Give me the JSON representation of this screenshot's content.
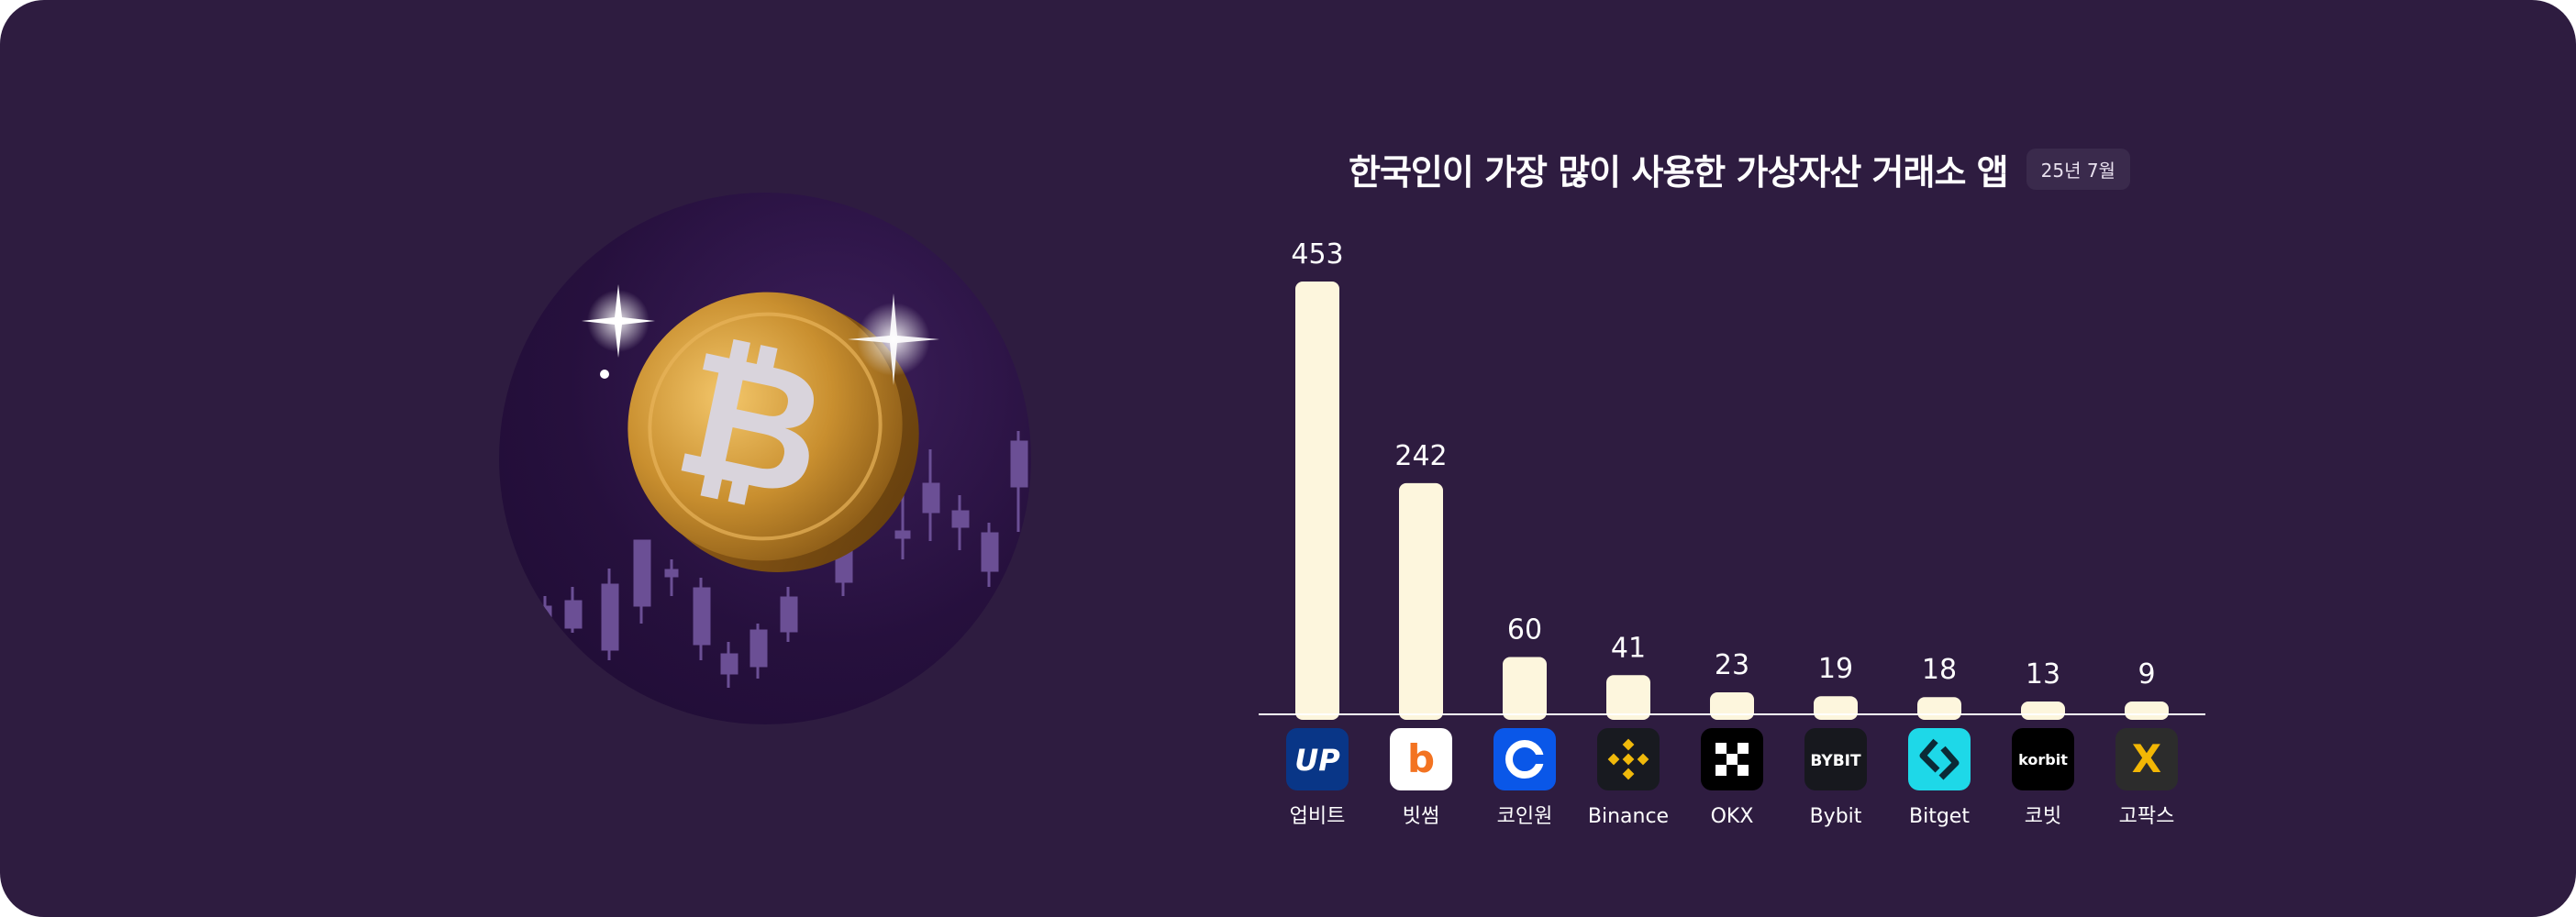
{
  "chart_data": {
    "type": "bar",
    "title": "한국인이 가장 많이 사용한 가상자산 거래소 앱",
    "period": "25년 7월",
    "categories": [
      "업비트",
      "빗썸",
      "코인원",
      "Binance",
      "OKX",
      "Bybit",
      "Bitget",
      "코빗",
      "고팍스"
    ],
    "values": [
      453,
      242,
      60,
      41,
      23,
      19,
      18,
      13,
      9
    ],
    "value_labels": [
      "453",
      "242",
      "60",
      "41",
      "23",
      "19",
      "18",
      "13",
      "9"
    ],
    "logos": [
      {
        "icon": "upbit-logo-icon",
        "text": "UP",
        "bg": "#093687",
        "fg": "#ffffff"
      },
      {
        "icon": "bithumb-logo-icon",
        "text": "b",
        "bg": "#ffffff",
        "fg": "#f37321"
      },
      {
        "icon": "coinone-logo-icon",
        "text": "",
        "bg": "#0a57e8",
        "fg": "#ffffff"
      },
      {
        "icon": "binance-logo-icon",
        "text": "",
        "bg": "#181a20",
        "fg": "#f0b90b"
      },
      {
        "icon": "okx-logo-icon",
        "text": "",
        "bg": "#000000",
        "fg": "#ffffff"
      },
      {
        "icon": "bybit-logo-icon",
        "text": "BYBIT",
        "bg": "#17181e",
        "fg": "#ffffff"
      },
      {
        "icon": "bitget-logo-icon",
        "text": "",
        "bg": "#1ed8e8",
        "fg": "#0b2a36"
      },
      {
        "icon": "korbit-logo-icon",
        "text": "korbit",
        "bg": "#000000",
        "fg": "#ffffff"
      },
      {
        "icon": "gopax-logo-icon",
        "text": "X",
        "bg": "#2c2c2c",
        "fg": "#f2b705"
      }
    ],
    "bar_color": "#fdf6dd",
    "axis_color": "#ffffff",
    "grid": false,
    "legend": "none"
  },
  "hero": {
    "icon": "bitcoin-coin-icon",
    "coin_color": "#c98f2f"
  }
}
